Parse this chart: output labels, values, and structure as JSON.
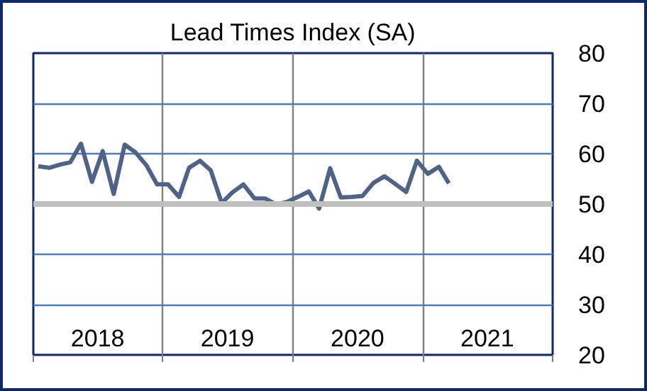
{
  "chart_data": {
    "type": "line",
    "title": "Lead Times Index (SA)",
    "x": [
      "2018-01-15",
      "2018-02-15",
      "2018-03-15",
      "2018-04-15",
      "2018-05-15",
      "2018-06-15",
      "2018-07-15",
      "2018-08-15",
      "2018-09-15",
      "2018-10-15",
      "2018-11-15",
      "2018-12-15",
      "2019-01-15",
      "2019-02-15",
      "2019-03-15",
      "2019-04-15",
      "2019-05-15",
      "2019-06-15",
      "2019-07-15",
      "2019-08-15",
      "2019-09-15",
      "2019-10-15",
      "2019-11-15",
      "2019-12-15",
      "2020-01-15",
      "2020-02-15",
      "2020-03-15",
      "2020-04-15",
      "2020-05-15",
      "2020-06-15",
      "2020-07-15",
      "2020-08-15",
      "2020-09-15",
      "2020-10-15",
      "2020-11-15",
      "2020-12-15",
      "2021-01-15",
      "2021-02-15",
      "2021-03-15"
    ],
    "series": [
      {
        "color": "#4f6388",
        "values": [
          57.5,
          57.2,
          57.8,
          58.3,
          62,
          54.4,
          60.5,
          52,
          61.8,
          60.3,
          57.7,
          53.9,
          53.9,
          51.4,
          57.2,
          58.6,
          56.7,
          50.2,
          52.3,
          53.9,
          51.1,
          51.1,
          49.9,
          50.4,
          51.4,
          52.5,
          49.1,
          57.1,
          51.3,
          51.4,
          51.6,
          54.2,
          55.5,
          54,
          52.4,
          58.6,
          56,
          57.4,
          54.1
        ]
      }
    ],
    "xlim": [
      "2018-01-01",
      "2022-01-01"
    ],
    "xticks": [
      {
        "value": "2018-01-01",
        "label": null
      },
      {
        "value": "2018-07-01",
        "label": "2018"
      },
      {
        "value": "2019-01-01",
        "label": null
      },
      {
        "value": "2019-07-01",
        "label": "2019"
      },
      {
        "value": "2020-01-01",
        "label": null
      },
      {
        "value": "2020-07-01",
        "label": "2020"
      },
      {
        "value": "2021-01-01",
        "label": null
      },
      {
        "value": "2021-07-01",
        "label": "2021"
      },
      {
        "value": "2022-01-01",
        "label": null
      }
    ],
    "ylim": [
      20,
      80
    ],
    "yticks": [
      20,
      30,
      40,
      50,
      60,
      70,
      80
    ],
    "ref_lines": [
      {
        "axis": "y",
        "value": 50,
        "color": "#c0c0c0"
      }
    ],
    "grid": true,
    "marker": "none",
    "line_style": "solid"
  }
}
